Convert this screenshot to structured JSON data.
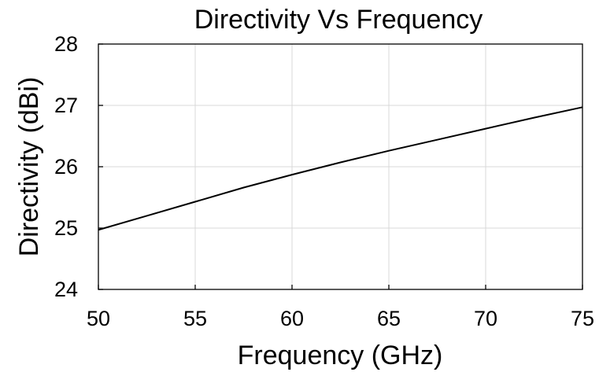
{
  "chart_data": {
    "type": "line",
    "title": "Directivity Vs Frequency",
    "xlabel": "Frequency (GHz)",
    "ylabel": "Directivity (dBi)",
    "xlim": [
      50,
      75
    ],
    "ylim": [
      24,
      28
    ],
    "xticks": [
      "50",
      "55",
      "60",
      "65",
      "70",
      "75"
    ],
    "yticks": [
      "24",
      "25",
      "26",
      "27",
      "28"
    ],
    "grid": true,
    "legend": "none",
    "series": [
      {
        "color": "#000000",
        "x": [
          50,
          52.5,
          55,
          57.5,
          60,
          62.5,
          65,
          67.5,
          70,
          72.5,
          75
        ],
        "y": [
          24.97,
          25.2,
          25.43,
          25.66,
          25.87,
          26.07,
          26.26,
          26.44,
          26.62,
          26.8,
          26.97
        ]
      }
    ]
  }
}
